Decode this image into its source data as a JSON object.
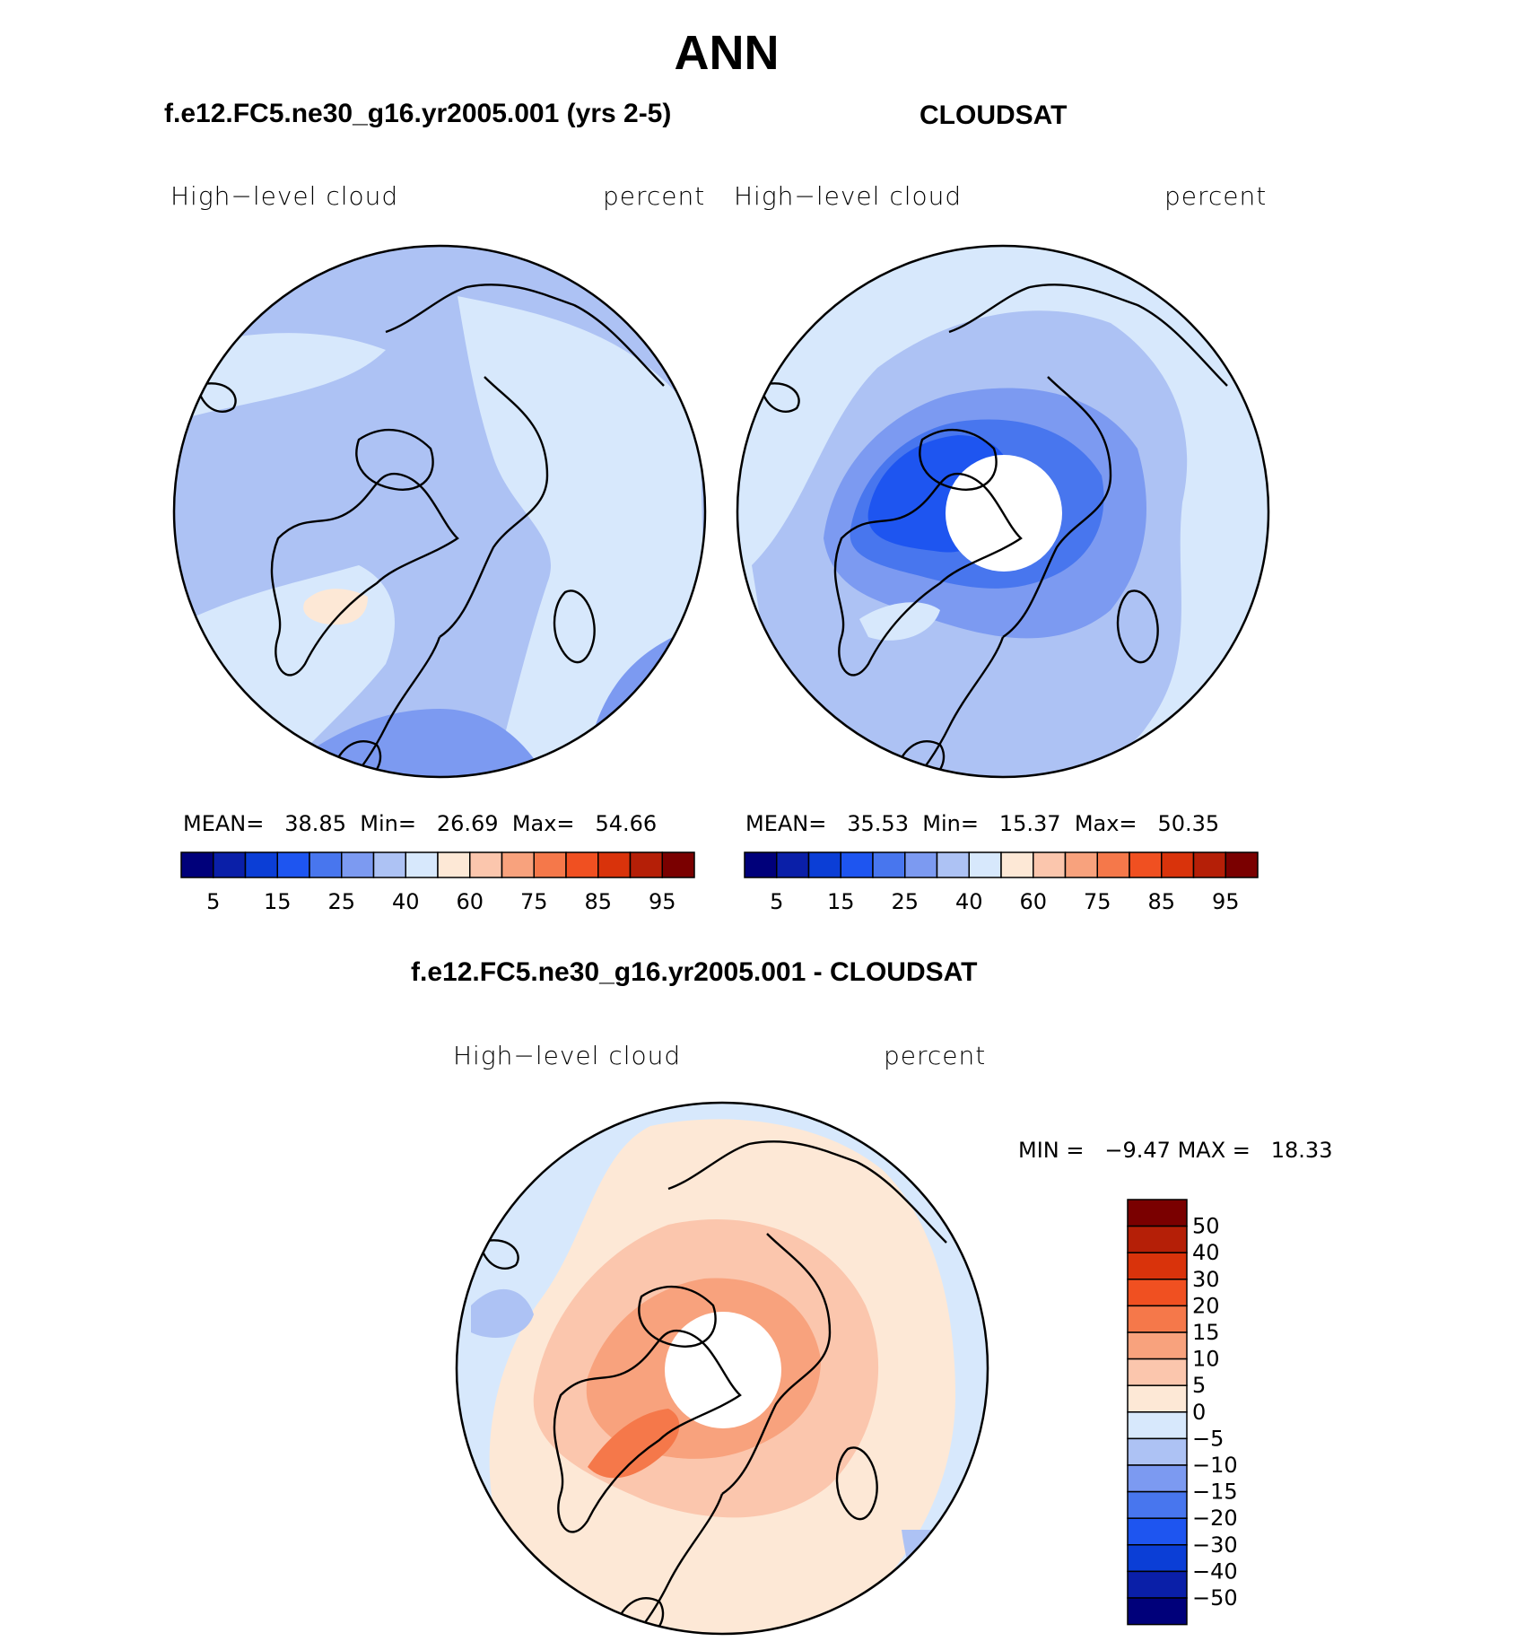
{
  "figure_title": "ANN",
  "panels": [
    {
      "title": "f.e12.FC5.ne30_g16.yr2005.001 (yrs 2-5)",
      "variable": "High−level cloud",
      "units": "percent",
      "stats": {
        "mean_label": "MEAN=",
        "mean": "38.85",
        "min_label": "Min=",
        "min": "26.69",
        "max_label": "Max=",
        "max": "54.66"
      }
    },
    {
      "title": "CLOUDSAT",
      "variable": "High−level cloud",
      "units": "percent",
      "stats": {
        "mean_label": "MEAN=",
        "mean": "35.53",
        "min_label": "Min=",
        "min": "15.37",
        "max_label": "Max=",
        "max": "50.35"
      }
    },
    {
      "title": "f.e12.FC5.ne30_g16.yr2005.001 - CLOUDSAT",
      "variable": "High−level cloud",
      "units": "percent",
      "stats": {
        "min_label": "MIN =",
        "min": "−9.47",
        "max_label": "MAX =",
        "max": "18.33"
      }
    }
  ],
  "colorbar_horizontal": {
    "colors": [
      "#00007a",
      "#0a1fa8",
      "#0b3ed6",
      "#1e55f0",
      "#4876ee",
      "#7c9af1",
      "#adc2f4",
      "#d7e8fc",
      "#fde8d6",
      "#fbc6ad",
      "#f8a27d",
      "#f5784a",
      "#f05021",
      "#d9330b",
      "#b51f07",
      "#7a0000"
    ],
    "tick_labels": [
      "5",
      "15",
      "25",
      "40",
      "60",
      "75",
      "85",
      "95"
    ]
  },
  "colorbar_vertical": {
    "colors": [
      "#7a0000",
      "#b51f07",
      "#d9330b",
      "#f05021",
      "#f5784a",
      "#f8a27d",
      "#fbc6ad",
      "#fde8d6",
      "#d7e8fc",
      "#adc2f4",
      "#7c9af1",
      "#4876ee",
      "#1e55f0",
      "#0b3ed6",
      "#0a1fa8",
      "#00007a"
    ],
    "tick_labels": [
      "50",
      "40",
      "30",
      "20",
      "15",
      "10",
      "5",
      "0",
      "−5",
      "−10",
      "−15",
      "−20",
      "−30",
      "−40",
      "−50"
    ]
  },
  "map_fill_colors": {
    "light_blue": "#d7e8fc",
    "mid_blue": "#adc2f4",
    "blue": "#7c9af1",
    "dark_blue": "#4876ee",
    "deep_blue": "#1e55f0",
    "peach": "#fde8d6",
    "salmon": "#fbc6ad",
    "orange": "#f8a27d",
    "deep_orange": "#f5784a",
    "missing": "#ffffff"
  }
}
